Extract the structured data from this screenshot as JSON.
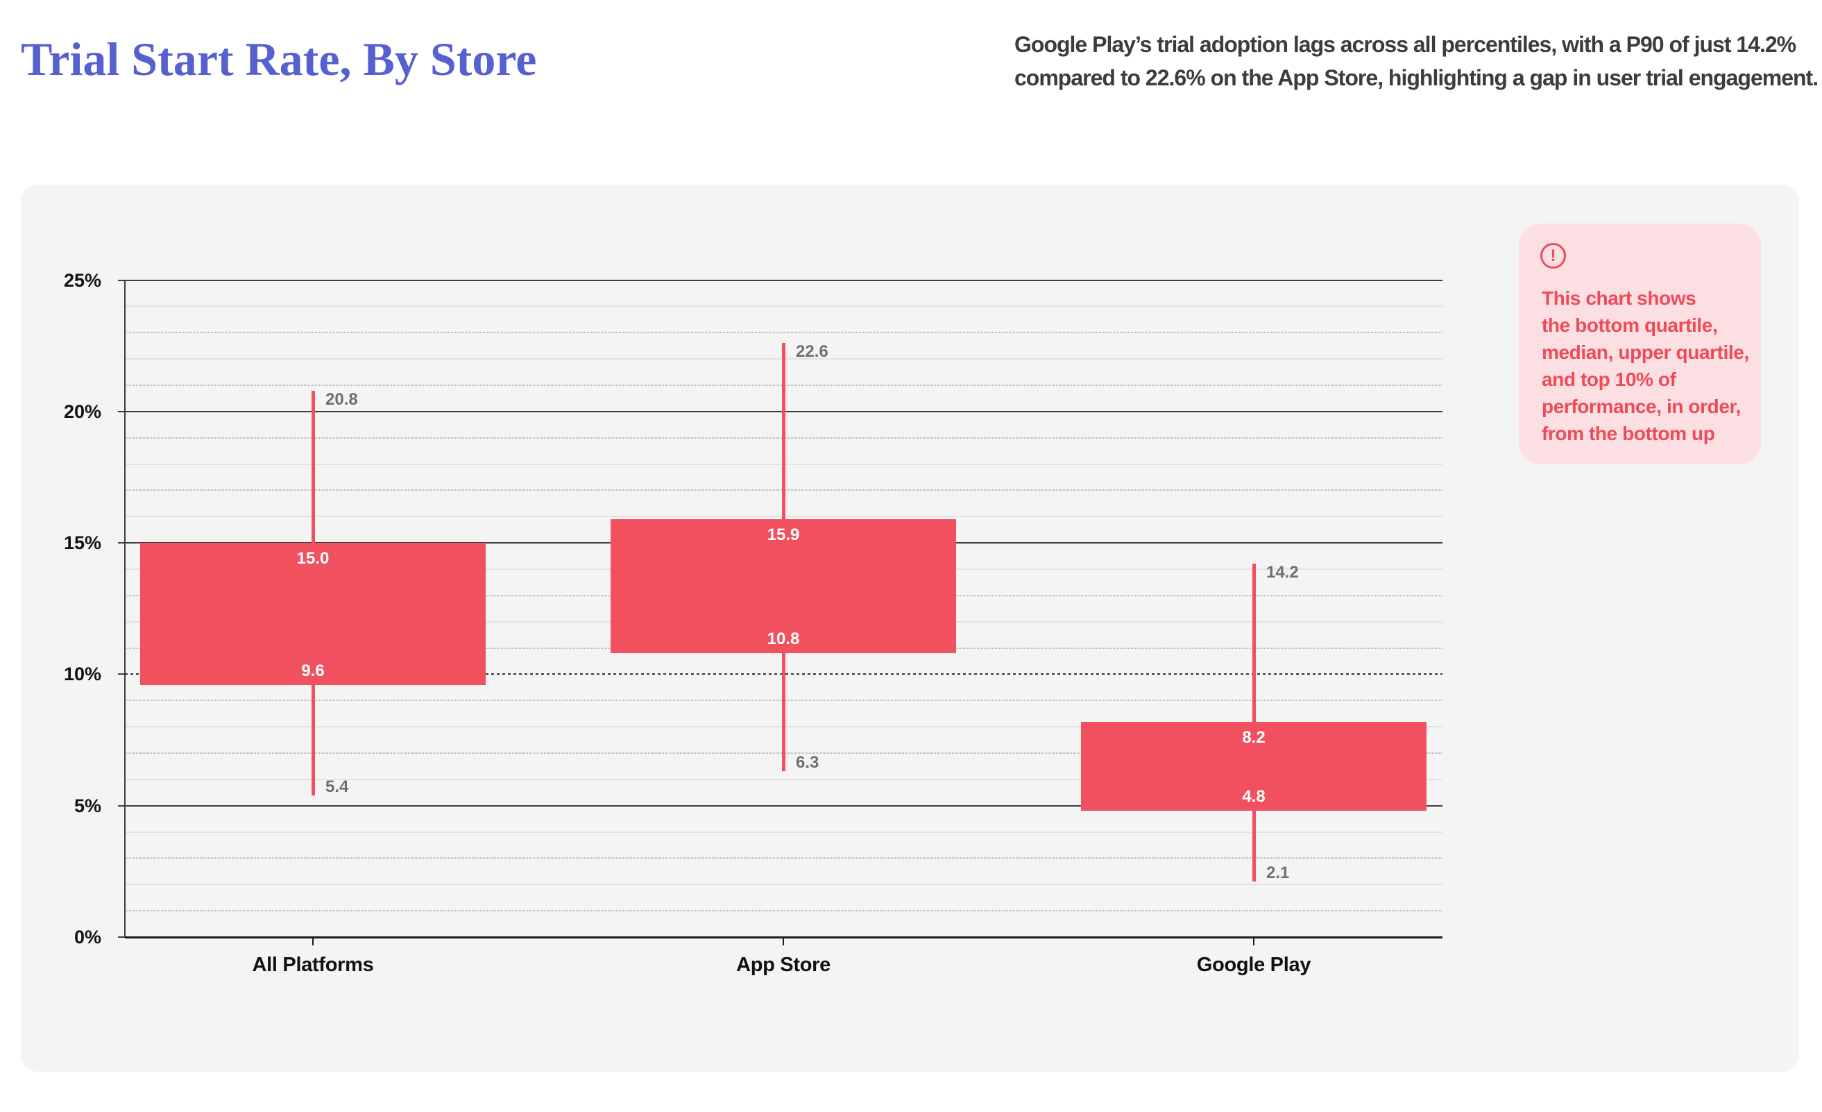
{
  "header": {
    "title": "Trial Start Rate, By Store",
    "subtitle": "Google Play’s trial adoption lags across all percentiles, with a P90 of just 14.2% compared to 22.6% on the App Store, highlighting a gap in user trial engagement.",
    "subtitle_lines": [
      "Google Play’s trial adoption lags across all percentiles, with a P90 of just 14.2%",
      "compared to 22.6% on the App Store, highlighting a gap in user trial engagement."
    ]
  },
  "note": {
    "icon": "alert-circle-icon",
    "icon_glyph": "!",
    "lines": [
      "This chart shows",
      "the bottom quartile,",
      "median, upper quartile,",
      "and top 10% of",
      "performance, in order,",
      "from the bottom up"
    ]
  },
  "chart_data": {
    "type": "bar",
    "subtype": "percentile-range-candlestick",
    "title": "Trial Start Rate, By Store",
    "categories": [
      "All Platforms",
      "App Store",
      "Google Play"
    ],
    "series": [
      {
        "name": "All Platforms",
        "p25": 5.4,
        "median": 9.6,
        "p75": 15.0,
        "p90": 20.8
      },
      {
        "name": "App Store",
        "p25": 6.3,
        "median": 10.8,
        "p75": 15.9,
        "p90": 22.6
      },
      {
        "name": "Google Play",
        "p25": 2.1,
        "median": 4.8,
        "p75": 8.2,
        "p90": 14.2
      }
    ],
    "value_labels_box": [
      "p75",
      "median"
    ],
    "value_labels_whisker": [
      "p90",
      "p25"
    ],
    "ylabel": "",
    "xlabel": "",
    "ylim": [
      0,
      25
    ],
    "ytick_labels": [
      "0%",
      "5%",
      "10%",
      "15%",
      "20%",
      "25%"
    ],
    "ytick_values": [
      0,
      5,
      10,
      15,
      20,
      25
    ],
    "minor_grid_step": 1,
    "grid": "on",
    "legend": "off",
    "bar_color": "#f1515f",
    "annotation": "This chart shows the bottom quartile, median, upper quartile, and top 10% of performance, in order, from the bottom up"
  },
  "colors": {
    "accent_red": "#f1515f",
    "note_bg": "#fbdfe2",
    "note_text": "#ee4b59",
    "title_blue": "#5661cf",
    "panel_bg": "#f4f4f5"
  }
}
